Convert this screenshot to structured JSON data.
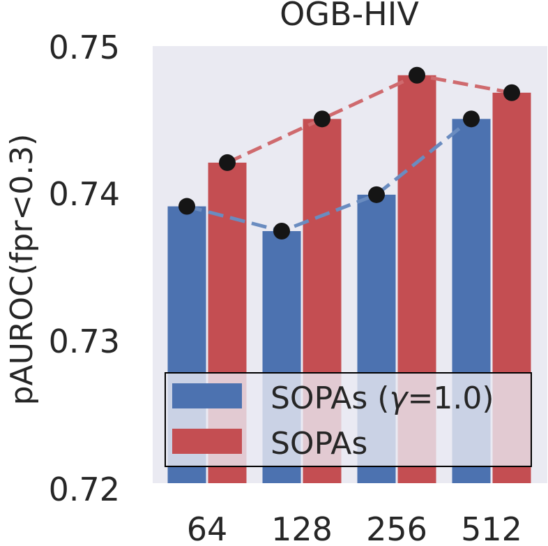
{
  "chart_data": {
    "type": "bar",
    "title": "OGB-HIV",
    "xlabel": "",
    "ylabel": "pAUROC(fpr<0.3)",
    "categories": [
      "64",
      "128",
      "256",
      "512"
    ],
    "ylim": [
      0.72,
      0.75
    ],
    "yticks": [
      "0.72",
      "0.73",
      "0.74",
      "0.75"
    ],
    "ytick_values": [
      0.72,
      0.73,
      0.74,
      0.75
    ],
    "grid": false,
    "legend_position": "bottom",
    "series": [
      {
        "name": "SOPAs (γ=1.0)",
        "legend_label_prefix": "SOPAs (",
        "legend_label_symbol": "γ",
        "legend_label_suffix": "=1.0)",
        "color": "#4c72b0",
        "line_color": "#6a8cc0",
        "values": [
          0.739,
          0.7373,
          0.7398,
          0.745
        ]
      },
      {
        "name": "SOPAs",
        "color": "#c44e52",
        "line_color": "#cf6a6e",
        "values": [
          0.742,
          0.745,
          0.748,
          0.7468
        ]
      }
    ],
    "marker_color": "#151515",
    "background_color": "#eaeaf2"
  }
}
